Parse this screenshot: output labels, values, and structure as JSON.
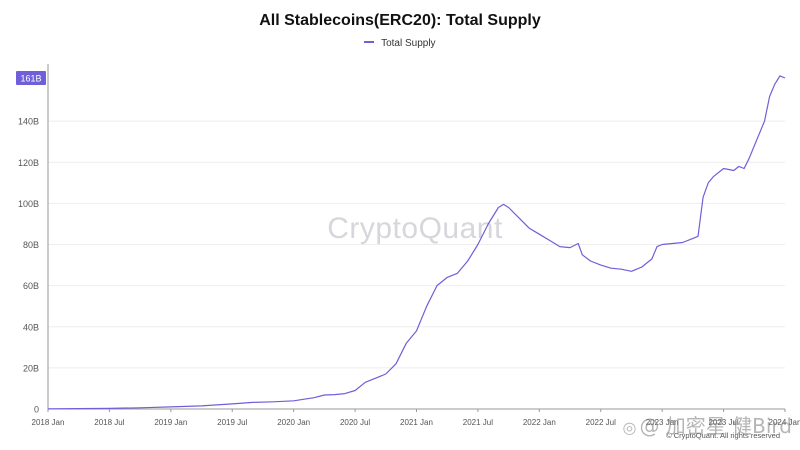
{
  "chart_data": {
    "type": "line",
    "title": "All Stablecoins(ERC20): Total Supply",
    "series": [
      {
        "name": "Total Supply",
        "color": "#6f5fd8",
        "points": [
          [
            0,
            0.1
          ],
          [
            3,
            0.2
          ],
          [
            6,
            0.3
          ],
          [
            9,
            0.6
          ],
          [
            12,
            1.0
          ],
          [
            15,
            1.5
          ],
          [
            18,
            2.5
          ],
          [
            20,
            3.2
          ],
          [
            22,
            3.5
          ],
          [
            24,
            4.0
          ],
          [
            26,
            5.5
          ],
          [
            27,
            6.8
          ],
          [
            28,
            7.0
          ],
          [
            29,
            7.5
          ],
          [
            30,
            9.0
          ],
          [
            31,
            13.0
          ],
          [
            32,
            15.0
          ],
          [
            33,
            17.0
          ],
          [
            34,
            22.0
          ],
          [
            35,
            32.0
          ],
          [
            36,
            38.0
          ],
          [
            37,
            50.0
          ],
          [
            38,
            60.0
          ],
          [
            39,
            64.0
          ],
          [
            40,
            66.0
          ],
          [
            41,
            72.0
          ],
          [
            42,
            80.0
          ],
          [
            43,
            90.0
          ],
          [
            44,
            98.0
          ],
          [
            44.5,
            99.5
          ],
          [
            45,
            98.0
          ],
          [
            46,
            93.0
          ],
          [
            47,
            88.0
          ],
          [
            48,
            85.0
          ],
          [
            49,
            82.0
          ],
          [
            50,
            79.0
          ],
          [
            51,
            78.5
          ],
          [
            51.8,
            80.5
          ],
          [
            52.2,
            75.0
          ],
          [
            53,
            72.0
          ],
          [
            54,
            70.0
          ],
          [
            55,
            68.5
          ],
          [
            56,
            68.0
          ],
          [
            57,
            67.0
          ],
          [
            58,
            69.0
          ],
          [
            59,
            73.0
          ],
          [
            59.5,
            79.0
          ],
          [
            60,
            80.0
          ],
          [
            61,
            80.5
          ],
          [
            62,
            81.0
          ],
          [
            63,
            83.0
          ],
          [
            63.5,
            84.0
          ],
          [
            64,
            103.0
          ],
          [
            64.5,
            110.0
          ],
          [
            65,
            113.0
          ],
          [
            66,
            117.0
          ],
          [
            67,
            116.0
          ],
          [
            67.5,
            118.0
          ],
          [
            68,
            117.0
          ],
          [
            68.5,
            122.0
          ],
          [
            69,
            128.0
          ],
          [
            70,
            140.0
          ],
          [
            70.5,
            152.0
          ],
          [
            71,
            158.0
          ],
          [
            71.5,
            162.0
          ],
          [
            72,
            161.0
          ]
        ]
      }
    ],
    "x_axis": {
      "range_months": [
        0,
        72
      ],
      "ticks": [
        {
          "month": 0,
          "label": "2018 Jan"
        },
        {
          "month": 6,
          "label": "2018 Jul"
        },
        {
          "month": 12,
          "label": "2019 Jan"
        },
        {
          "month": 18,
          "label": "2019 Jul"
        },
        {
          "month": 24,
          "label": "2020 Jan"
        },
        {
          "month": 30,
          "label": "2020 Jul"
        },
        {
          "month": 36,
          "label": "2021 Jan"
        },
        {
          "month": 42,
          "label": "2021 Jul"
        },
        {
          "month": 48,
          "label": "2022 Jan"
        },
        {
          "month": 54,
          "label": "2022 Jul"
        },
        {
          "month": 60,
          "label": "2023 Jan"
        },
        {
          "month": 66,
          "label": "2023 Jul"
        },
        {
          "month": 72,
          "label": "2024 Jan"
        }
      ]
    },
    "y_axis": {
      "unit": "B",
      "ylim": [
        0,
        161
      ],
      "ticks": [
        {
          "value": 0,
          "label": "0"
        },
        {
          "value": 20,
          "label": "20B"
        },
        {
          "value": 40,
          "label": "40B"
        },
        {
          "value": 60,
          "label": "60B"
        },
        {
          "value": 80,
          "label": "80B"
        },
        {
          "value": 100,
          "label": "100B"
        },
        {
          "value": 120,
          "label": "120B"
        },
        {
          "value": 140,
          "label": "140B"
        }
      ],
      "current_value_badge": {
        "value": 161,
        "label": "161B"
      }
    }
  },
  "legend": {
    "label": "Total Supply",
    "color": "#6f5fd8"
  },
  "watermark": {
    "text": "CryptoQuant"
  },
  "footer": {
    "copyright": "© CryptoQuant. All rights reserved"
  },
  "corner_mark": {
    "glyph": "◎",
    "text": "@ 加密星 健Bird"
  }
}
